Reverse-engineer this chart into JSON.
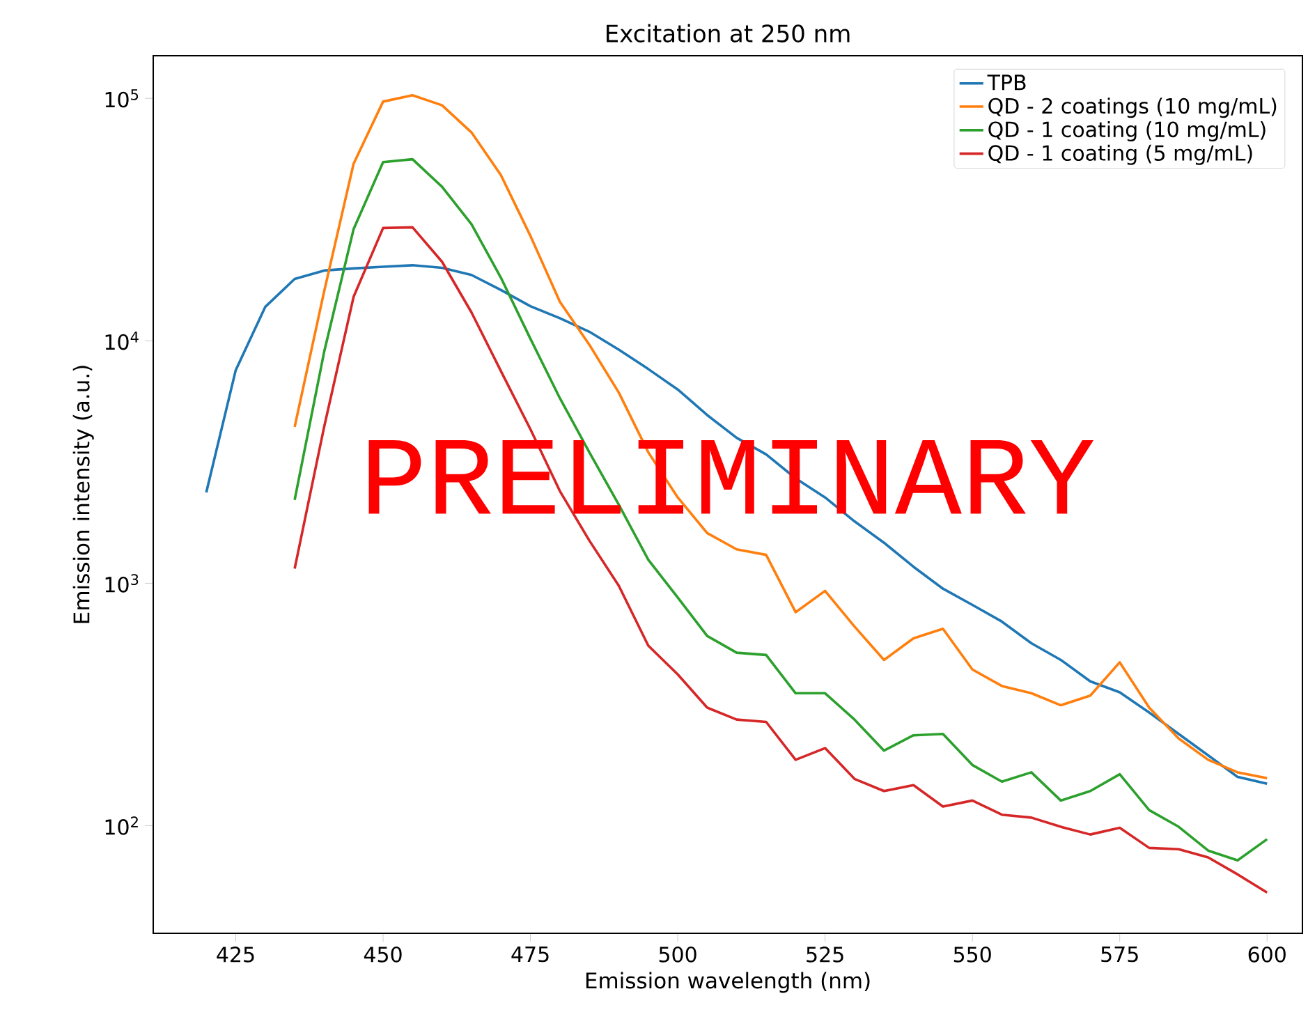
{
  "chart_data": {
    "type": "line",
    "title": "Excitation at 250 nm",
    "xlabel": "Emission wavelength (nm)",
    "ylabel": "Emission intensity (a.u.)",
    "log": "y",
    "legend": "top right",
    "grid": false,
    "line_style": "solid",
    "marker": "none",
    "xlim": [
      411,
      606
    ],
    "xticks": [
      425,
      450,
      475,
      500,
      525,
      550,
      575,
      600
    ],
    "ylim": [
      36,
      150000
    ],
    "yticks": [
      {
        "value": 100,
        "label": "10$^{2}$"
      },
      {
        "value": 1000,
        "label": "10$^{3}$"
      },
      {
        "value": 10000,
        "label": "10$^{4}$"
      },
      {
        "value": 100000,
        "label": "10$^{5}$"
      }
    ],
    "annotations": [
      "PRELIMINARY"
    ],
    "series": [
      {
        "name": "TPB",
        "color": "#1f77b4",
        "x": [
          420,
          425,
          430,
          435,
          440,
          445,
          450,
          455,
          460,
          465,
          470,
          475,
          480,
          485,
          490,
          495,
          500,
          505,
          510,
          515,
          520,
          525,
          530,
          535,
          540,
          545,
          550,
          555,
          560,
          565,
          570,
          575,
          580,
          585,
          590,
          595,
          600
        ],
        "values": [
          2370,
          7570,
          13800,
          18000,
          19500,
          19900,
          20200,
          20500,
          20000,
          18700,
          16200,
          13900,
          12400,
          10900,
          9200,
          7650,
          6300,
          4940,
          3980,
          3400,
          2710,
          2260,
          1800,
          1470,
          1170,
          950,
          814,
          695,
          566,
          483,
          394,
          355,
          293,
          239,
          195,
          159,
          149
        ]
      },
      {
        "name": "QD - 2 coatings (10 mg/mL)",
        "color": "#ff7f0e",
        "x": [
          435,
          440,
          445,
          450,
          455,
          460,
          465,
          470,
          475,
          480,
          485,
          490,
          495,
          500,
          505,
          510,
          515,
          520,
          525,
          530,
          535,
          540,
          545,
          550,
          555,
          560,
          565,
          570,
          575,
          580,
          585,
          590,
          595,
          600
        ],
        "values": [
          4420,
          16000,
          53800,
          97000,
          103000,
          93700,
          72400,
          48200,
          27100,
          14500,
          9640,
          6120,
          3470,
          2260,
          1610,
          1380,
          1310,
          760,
          930,
          663,
          483,
          593,
          649,
          441,
          377,
          352,
          314,
          344,
          472,
          307,
          229,
          187,
          166,
          157
        ]
      },
      {
        "name": "QD - 1 coating (10 mg/mL)",
        "color": "#2ca02c",
        "x": [
          435,
          440,
          445,
          450,
          455,
          460,
          465,
          470,
          475,
          480,
          485,
          490,
          495,
          500,
          505,
          510,
          515,
          520,
          525,
          530,
          535,
          540,
          545,
          550,
          555,
          560,
          565,
          570,
          575,
          580,
          585,
          590,
          595,
          600
        ],
        "values": [
          2210,
          9000,
          28900,
          54600,
          56100,
          43200,
          30300,
          18200,
          10200,
          5800,
          3470,
          2110,
          1250,
          873,
          606,
          517,
          506,
          352,
          352,
          274,
          204,
          236,
          239,
          178,
          152,
          166,
          127,
          139,
          163,
          116,
          99,
          79,
          72,
          88
        ]
      },
      {
        "name": "QD - 1 coating (5 mg/mL)",
        "color": "#d62728",
        "x": [
          435,
          440,
          445,
          450,
          455,
          460,
          465,
          470,
          475,
          480,
          485,
          490,
          495,
          500,
          505,
          510,
          515,
          520,
          525,
          530,
          535,
          540,
          545,
          550,
          555,
          560,
          565,
          570,
          575,
          580,
          585,
          590,
          595,
          600
        ],
        "values": [
          1150,
          4420,
          15200,
          29200,
          29400,
          21200,
          13100,
          7500,
          4320,
          2400,
          1500,
          977,
          553,
          421,
          307,
          274,
          268,
          187,
          209,
          156,
          139,
          147,
          120,
          127,
          111,
          108,
          99,
          92,
          98,
          81,
          80,
          74,
          63,
          53
        ]
      }
    ]
  }
}
